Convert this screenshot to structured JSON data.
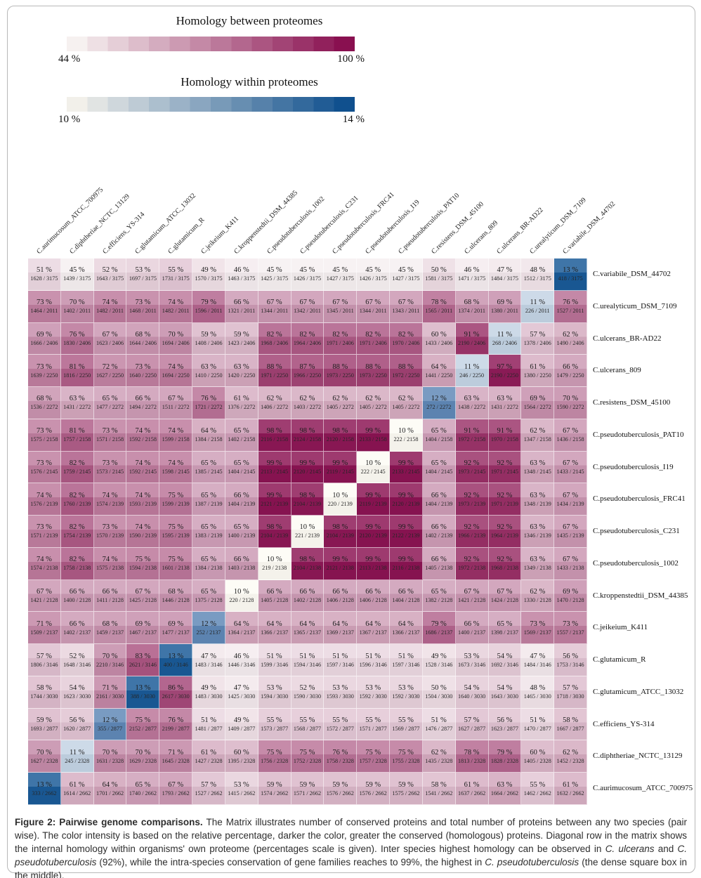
{
  "legends": [
    {
      "title": "Homology between proteomes",
      "min_label": "44 %",
      "max_label": "100 %",
      "color_start": "#f6f1f0",
      "color_end": "#891050"
    },
    {
      "title": "Homology within proteomes",
      "min_label": "10 %",
      "max_label": "14 %",
      "color_start": "#f2f0ea",
      "color_end": "#10508e"
    }
  ],
  "chart_data": {
    "type": "heatmap",
    "title": "Pairwise genome comparisons",
    "cell_value_format": "percent over conserved / total proteins",
    "columns": [
      "C.aurimucosum_ATCC_700975",
      "C.diphtheriae_NCTC_13129",
      "C.efficiens_YS-314",
      "C.glutamicum_ATCC_13032",
      "C.glutamicum_R",
      "C.jeikeium_K411",
      "C.kroppenstedtii_DSM_44385",
      "C.pseudotuberculosis_1002",
      "C.pseudotuberculosis_C231",
      "C.pseudotuberculosis_FRC41",
      "C.pseudotuberculosis_I19",
      "C.pseudotuberculosis_PAT10",
      "C.resistens_DSM_45100",
      "C.ulcerans_809",
      "C.ulcerans_BR-AD22",
      "C.urealyticum_DSM_7109",
      "C.variabile_DSM_44702"
    ],
    "rows_top_to_bottom": [
      {
        "label": "C.variabile_DSM_44702",
        "proteome_total": 3175,
        "pct": [
          51,
          45,
          52,
          53,
          55,
          49,
          46,
          45,
          45,
          45,
          45,
          45,
          50,
          46,
          47,
          48,
          13
        ],
        "conserved": [
          1628,
          1439,
          1643,
          1697,
          1731,
          1570,
          1463,
          1425,
          1426,
          1427,
          1426,
          1427,
          1581,
          1471,
          1484,
          1512,
          418
        ]
      },
      {
        "label": "C.urealyticum_DSM_7109",
        "proteome_total": 2011,
        "pct": [
          73,
          70,
          74,
          73,
          74,
          79,
          66,
          67,
          67,
          67,
          67,
          67,
          78,
          68,
          69,
          11,
          76
        ],
        "conserved": [
          1464,
          1402,
          1482,
          1468,
          1482,
          1596,
          1321,
          1344,
          1342,
          1345,
          1344,
          1343,
          1565,
          1374,
          1380,
          226,
          1527
        ]
      },
      {
        "label": "C.ulcerans_BR-AD22",
        "proteome_total": 2406,
        "pct": [
          69,
          76,
          67,
          68,
          70,
          59,
          59,
          82,
          82,
          82,
          82,
          82,
          60,
          91,
          11,
          57,
          62
        ],
        "conserved": [
          1666,
          1830,
          1623,
          1644,
          1694,
          1408,
          1423,
          1968,
          1964,
          1971,
          1971,
          1970,
          1433,
          2190,
          268,
          1378,
          1490
        ]
      },
      {
        "label": "C.ulcerans_809",
        "proteome_total": 2250,
        "pct": [
          73,
          81,
          72,
          73,
          74,
          63,
          63,
          88,
          87,
          88,
          88,
          88,
          64,
          11,
          97,
          61,
          66
        ],
        "conserved": [
          1639,
          1816,
          1627,
          1640,
          1694,
          1410,
          1420,
          1971,
          1966,
          1973,
          1973,
          1972,
          1441,
          246,
          2190,
          1380,
          1479
        ]
      },
      {
        "label": "C.resistens_DSM_45100",
        "proteome_total": 2272,
        "pct": [
          68,
          63,
          65,
          66,
          67,
          76,
          61,
          62,
          62,
          62,
          62,
          62,
          12,
          63,
          63,
          69,
          70
        ],
        "conserved": [
          1536,
          1431,
          1477,
          1494,
          1511,
          1721,
          1376,
          1406,
          1403,
          1405,
          1405,
          1405,
          272,
          1438,
          1431,
          1564,
          1590
        ]
      },
      {
        "label": "C.pseudotuberculosis_PAT10",
        "proteome_total": 2158,
        "pct": [
          73,
          81,
          73,
          74,
          74,
          64,
          65,
          98,
          98,
          98,
          99,
          10,
          65,
          91,
          91,
          62,
          67
        ],
        "conserved": [
          1575,
          1757,
          1571,
          1592,
          1599,
          1384,
          1402,
          2116,
          2124,
          2120,
          2133,
          222,
          1404,
          1972,
          1970,
          1347,
          1436
        ]
      },
      {
        "label": "C.pseudotuberculosis_I19",
        "proteome_total": 2145,
        "pct": [
          73,
          82,
          73,
          74,
          74,
          65,
          65,
          99,
          99,
          99,
          10,
          99,
          65,
          92,
          92,
          63,
          67
        ],
        "conserved": [
          1576,
          1759,
          1573,
          1592,
          1598,
          1385,
          1404,
          2113,
          2120,
          2119,
          222,
          2133,
          1404,
          1973,
          1971,
          1348,
          1433
        ]
      },
      {
        "label": "C.pseudotuberculosis_FRC41",
        "proteome_total": 2139,
        "pct": [
          74,
          82,
          74,
          74,
          75,
          65,
          66,
          99,
          98,
          10,
          99,
          99,
          66,
          92,
          92,
          63,
          67
        ],
        "conserved": [
          1576,
          1760,
          1574,
          1593,
          1599,
          1387,
          1404,
          2121,
          2104,
          220,
          2119,
          2120,
          1404,
          1973,
          1971,
          1348,
          1434
        ]
      },
      {
        "label": "C.pseudotuberculosis_C231",
        "proteome_total": 2139,
        "pct": [
          73,
          82,
          73,
          74,
          75,
          65,
          65,
          98,
          10,
          98,
          99,
          99,
          66,
          92,
          92,
          63,
          67
        ],
        "conserved": [
          1571,
          1754,
          1570,
          1590,
          1595,
          1383,
          1400,
          2104,
          221,
          2104,
          2120,
          2122,
          1402,
          1966,
          1964,
          1346,
          1435
        ]
      },
      {
        "label": "C.pseudotuberculosis_1002",
        "proteome_total": 2138,
        "pct": [
          74,
          82,
          74,
          75,
          75,
          65,
          66,
          10,
          98,
          99,
          99,
          99,
          66,
          92,
          92,
          63,
          67
        ],
        "conserved": [
          1574,
          1758,
          1575,
          1594,
          1601,
          1384,
          1403,
          219,
          2104,
          2121,
          2113,
          2116,
          1405,
          1972,
          1968,
          1349,
          1433
        ]
      },
      {
        "label": "C.kroppenstedtii_DSM_44385",
        "proteome_total": 2128,
        "pct": [
          67,
          66,
          66,
          67,
          68,
          65,
          10,
          66,
          66,
          66,
          66,
          66,
          65,
          67,
          67,
          62,
          69
        ],
        "conserved": [
          1421,
          1400,
          1411,
          1425,
          1446,
          1375,
          220,
          1405,
          1402,
          1406,
          1406,
          1404,
          1382,
          1421,
          1424,
          1330,
          1470
        ]
      },
      {
        "label": "C.jeikeium_K411",
        "proteome_total": 2137,
        "pct": [
          71,
          66,
          68,
          69,
          69,
          12,
          64,
          64,
          64,
          64,
          64,
          64,
          79,
          66,
          65,
          73,
          73
        ],
        "conserved": [
          1509,
          1402,
          1459,
          1467,
          1477,
          252,
          1364,
          1366,
          1365,
          1369,
          1367,
          1366,
          1686,
          1400,
          1398,
          1569,
          1557
        ]
      },
      {
        "label": "C.glutamicum_R",
        "proteome_total": 3146,
        "pct": [
          57,
          52,
          70,
          83,
          13,
          47,
          46,
          51,
          51,
          51,
          51,
          51,
          49,
          53,
          54,
          47,
          56
        ],
        "conserved": [
          1806,
          1648,
          2210,
          2621,
          400,
          1483,
          1446,
          1599,
          1594,
          1597,
          1596,
          1597,
          1528,
          1673,
          1692,
          1484,
          1753
        ]
      },
      {
        "label": "C.glutamicum_ATCC_13032",
        "proteome_total": 3030,
        "pct": [
          58,
          54,
          71,
          13,
          86,
          49,
          47,
          53,
          52,
          53,
          53,
          53,
          50,
          54,
          54,
          48,
          57
        ],
        "conserved": [
          1744,
          1623,
          2161,
          388,
          2617,
          1483,
          1425,
          1594,
          1590,
          1593,
          1592,
          1592,
          1504,
          1640,
          1643,
          1465,
          1718
        ]
      },
      {
        "label": "C.efficiens_YS-314",
        "proteome_total": 2877,
        "pct": [
          59,
          56,
          12,
          75,
          76,
          51,
          49,
          55,
          55,
          55,
          55,
          55,
          51,
          57,
          56,
          51,
          58
        ],
        "conserved": [
          1693,
          1620,
          355,
          2152,
          2199,
          1481,
          1409,
          1573,
          1568,
          1572,
          1571,
          1569,
          1476,
          1627,
          1623,
          1470,
          1667
        ]
      },
      {
        "label": "C.diphtheriae_NCTC_13129",
        "proteome_total": 2328,
        "pct": [
          70,
          11,
          70,
          70,
          71,
          61,
          60,
          75,
          75,
          76,
          75,
          75,
          62,
          78,
          79,
          60,
          62
        ],
        "conserved": [
          1627,
          245,
          1631,
          1629,
          1645,
          1427,
          1395,
          1756,
          1752,
          1758,
          1757,
          1755,
          1435,
          1813,
          1828,
          1405,
          1452
        ]
      },
      {
        "label": "C.aurimucosum_ATCC_700975",
        "proteome_total": 2662,
        "pct": [
          13,
          61,
          64,
          65,
          67,
          57,
          53,
          59,
          59,
          59,
          59,
          59,
          58,
          61,
          63,
          55,
          61
        ],
        "conserved": [
          333,
          1614,
          1701,
          1740,
          1793,
          1527,
          1415,
          1574,
          1571,
          1576,
          1576,
          1575,
          1541,
          1637,
          1664,
          1462,
          1632
        ]
      }
    ],
    "between_scale": {
      "min_pct": 44,
      "max_pct": 100,
      "start_color": "#f8f3f4",
      "end_color": "#891050"
    },
    "diagonal_scale": {
      "min_pct": 10,
      "max_pct": 14,
      "colors": {
        "10": "#fdfbf4",
        "11": "#c3d3e4",
        "12": "#5f88b6",
        "13": "#1a5a97"
      }
    },
    "legend_position": "top",
    "grid": false
  },
  "caption": {
    "segments": [
      {
        "text": "Figure 2: Pairwise genome comparisons.",
        "bold": true
      },
      {
        "text": " The Matrix illustrates number of conserved proteins and total number of proteins between any two species (pair wise). The color intensity is based on the relative percentage, darker the color, greater the conserved (homologous) proteins. Diagonal row in the matrix shows the internal homology within organisms' own proteome (percentages scale is given). Inter species highest homology can be observed in "
      },
      {
        "text": "C. ulcerans",
        "italic": true
      },
      {
        "text": " and "
      },
      {
        "text": "C. pseudotuberculosis",
        "italic": true
      },
      {
        "text": " (92%), while the intra-species conservation of gene families reaches to 99%, the highest in "
      },
      {
        "text": "C. pseudotuberculosis",
        "italic": true
      },
      {
        "text": " (the dense square box in the middle)."
      }
    ]
  }
}
